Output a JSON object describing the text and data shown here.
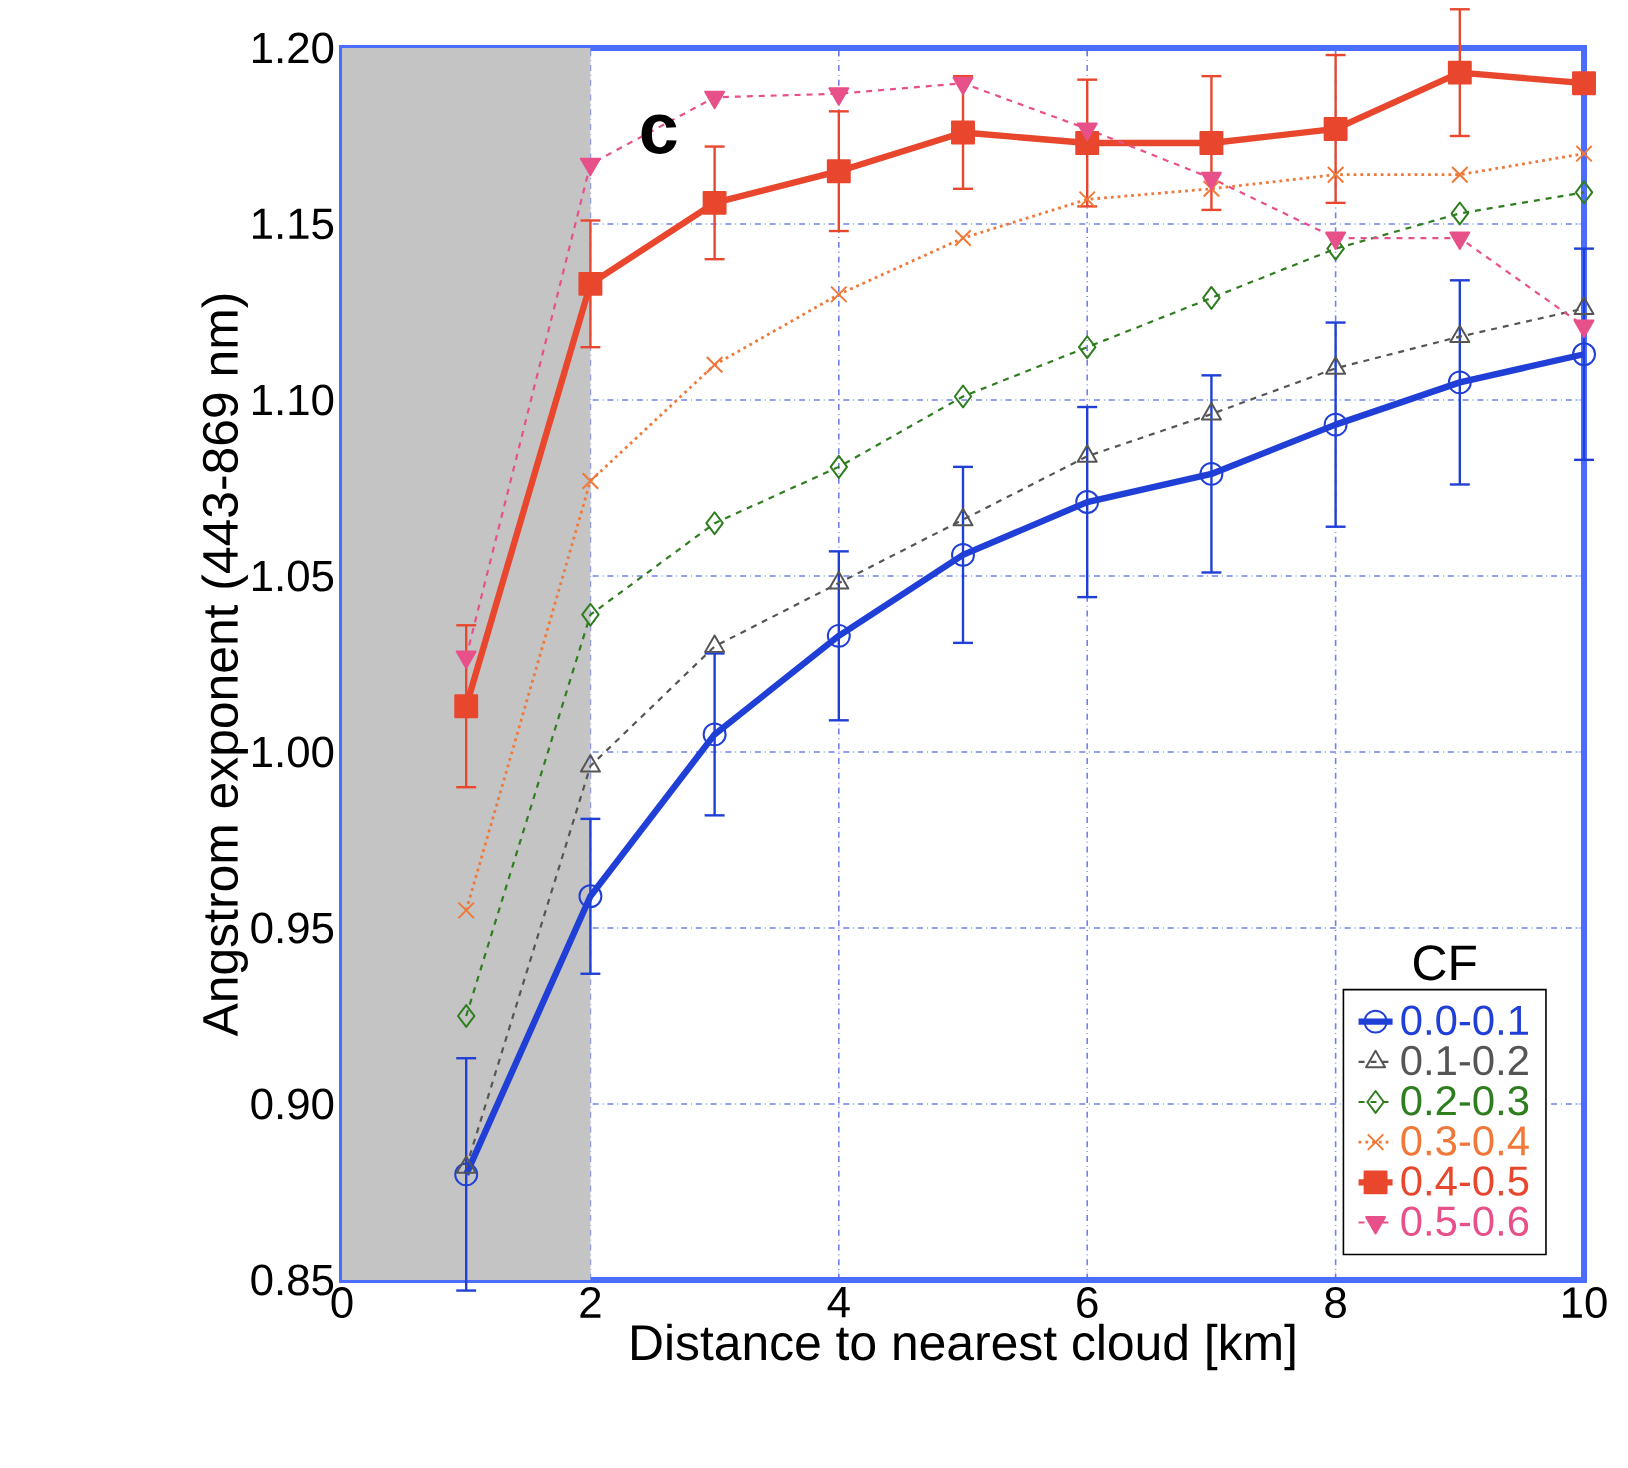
{
  "chart_data": {
    "type": "line",
    "xlabel": "Distance to nearest cloud [km]",
    "ylabel": "Angstrom exponent (443-869 nm)",
    "legend_title": "CF",
    "annotations": [
      "c"
    ],
    "x": [
      1,
      2,
      3,
      4,
      5,
      6,
      7,
      8,
      9,
      10
    ],
    "xlim": [
      0,
      10
    ],
    "xticks": [
      0,
      2,
      4,
      6,
      8,
      10
    ],
    "ylim": [
      0.85,
      1.2
    ],
    "yticks": [
      {
        "value": 0.85,
        "label": "0.85"
      },
      {
        "value": 0.9,
        "label": "0.90"
      },
      {
        "value": 0.95,
        "label": "0.95"
      },
      {
        "value": 1.0,
        "label": "1.00"
      },
      {
        "value": 1.05,
        "label": "1.05"
      },
      {
        "value": 1.1,
        "label": "1.10"
      },
      {
        "value": 1.15,
        "label": "1.15"
      },
      {
        "value": 1.2,
        "label": "1.20"
      }
    ],
    "grid": true,
    "legend": "bottom right",
    "bands": [
      {
        "axis": "x",
        "from": 0,
        "to": 2,
        "color": "#c4c4c4"
      }
    ],
    "series": [
      {
        "name": "0.0-0.1",
        "color": "#1f3fd6",
        "marker": "circle",
        "line_style": "solid",
        "values": [
          0.88,
          0.959,
          1.005,
          1.033,
          1.056,
          1.071,
          1.079,
          1.093,
          1.105,
          1.113
        ],
        "errors": [
          0.033,
          0.022,
          0.023,
          0.024,
          0.025,
          0.027,
          0.028,
          0.029,
          0.029,
          0.03
        ]
      },
      {
        "name": "0.1-0.2",
        "color": "#555555",
        "marker": "triangle",
        "line_style": "dashed",
        "values": [
          0.882,
          0.996,
          1.03,
          1.048,
          1.066,
          1.084,
          1.096,
          1.109,
          1.118,
          1.126
        ]
      },
      {
        "name": "0.2-0.3",
        "color": "#2e7d1e",
        "marker": "diamond",
        "line_style": "dashed",
        "values": [
          0.925,
          1.039,
          1.065,
          1.081,
          1.101,
          1.115,
          1.129,
          1.143,
          1.153,
          1.159
        ]
      },
      {
        "name": "0.3-0.4",
        "color": "#f07838",
        "marker": "cross",
        "line_style": "dotted",
        "values": [
          0.955,
          1.077,
          1.11,
          1.13,
          1.146,
          1.157,
          1.16,
          1.164,
          1.164,
          1.17
        ]
      },
      {
        "name": "0.4-0.5",
        "color": "#e8472e",
        "marker": "square",
        "line_style": "solid",
        "values": [
          1.013,
          1.133,
          1.156,
          1.165,
          1.176,
          1.173,
          1.173,
          1.177,
          1.193,
          1.19
        ],
        "errors": [
          0.023,
          0.018,
          0.016,
          0.017,
          0.016,
          0.018,
          0.019,
          0.021,
          0.018,
          null
        ]
      },
      {
        "name": "0.5-0.6",
        "color": "#e8508a",
        "marker": "triangle-down",
        "line_style": "dashed",
        "values": [
          1.027,
          1.167,
          1.186,
          1.187,
          1.19,
          1.177,
          1.163,
          1.146,
          1.146,
          1.121
        ]
      }
    ]
  }
}
